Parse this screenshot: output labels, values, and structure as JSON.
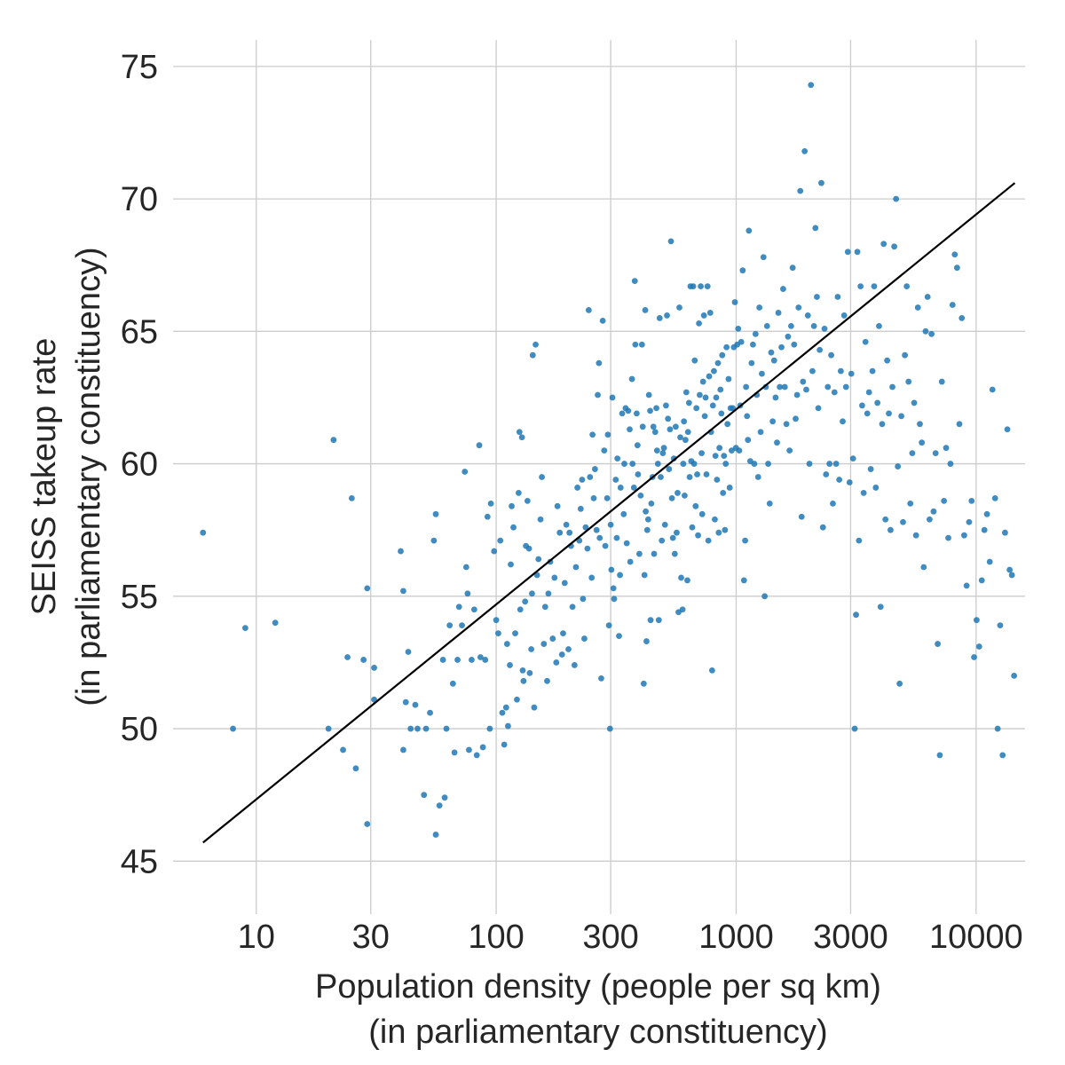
{
  "chart_data": {
    "type": "scatter",
    "xlabel_lines": [
      "Population density (people per sq km)",
      "(in parliamentary constituency)"
    ],
    "ylabel_lines": [
      "SEISS takeup rate",
      "(in parliamentary constituency)"
    ],
    "x_scale": "log",
    "xlim": [
      4.5,
      16000
    ],
    "ylim": [
      43,
      76
    ],
    "x_ticks": [
      10,
      30,
      100,
      300,
      1000,
      3000,
      10000
    ],
    "x_tick_labels": [
      "10",
      "30",
      "100",
      "300",
      "1000",
      "3000",
      "10000"
    ],
    "y_ticks": [
      45,
      50,
      55,
      60,
      65,
      70,
      75
    ],
    "y_tick_labels": [
      "45",
      "50",
      "55",
      "60",
      "65",
      "70",
      "75"
    ],
    "grid": true,
    "point_color": "#1f77b4",
    "trend_color": "#000000",
    "trend_line": [
      [
        6,
        45.7
      ],
      [
        14500,
        70.6
      ]
    ],
    "points": [
      [
        6,
        57.4
      ],
      [
        8,
        50
      ],
      [
        9,
        53.8
      ],
      [
        12,
        54
      ],
      [
        20,
        50
      ],
      [
        21,
        60.9
      ],
      [
        23,
        49.2
      ],
      [
        24,
        52.7
      ],
      [
        25,
        58.7
      ],
      [
        26,
        48.5
      ],
      [
        29,
        55.3
      ],
      [
        29,
        46.4
      ],
      [
        28,
        52.6
      ],
      [
        31,
        52.3
      ],
      [
        31,
        51.1
      ],
      [
        40,
        56.7
      ],
      [
        41,
        55.2
      ],
      [
        41,
        49.2
      ],
      [
        42,
        51
      ],
      [
        43,
        52.9
      ],
      [
        44,
        50
      ],
      [
        46,
        50.9
      ],
      [
        47,
        50
      ],
      [
        50,
        47.5
      ],
      [
        51,
        50
      ],
      [
        53,
        50.6
      ],
      [
        55,
        57.1
      ],
      [
        56,
        58.1
      ],
      [
        56,
        46
      ],
      [
        58,
        47.1
      ],
      [
        60,
        52.6
      ],
      [
        61,
        47.4
      ],
      [
        62,
        50
      ],
      [
        64,
        53.9
      ],
      [
        66,
        51.7
      ],
      [
        67,
        49.1
      ],
      [
        69,
        52.6
      ],
      [
        70,
        54.6
      ],
      [
        72,
        53.9
      ],
      [
        74,
        59.7
      ],
      [
        75,
        56.1
      ],
      [
        76,
        55.1
      ],
      [
        77,
        49.2
      ],
      [
        79,
        52.6
      ],
      [
        81,
        54.5
      ],
      [
        83,
        49
      ],
      [
        85,
        60.7
      ],
      [
        86,
        52.7
      ],
      [
        88,
        49.3
      ],
      [
        90,
        52.6
      ],
      [
        92,
        58
      ],
      [
        94,
        50
      ],
      [
        95,
        58.5
      ],
      [
        98,
        56.7
      ],
      [
        100,
        54.1
      ],
      [
        102,
        53.6
      ],
      [
        104,
        57.1
      ],
      [
        106,
        50.6
      ],
      [
        108,
        49.4
      ],
      [
        110,
        50.8
      ],
      [
        111,
        53.2
      ],
      [
        112,
        50.1
      ],
      [
        114,
        52.4
      ],
      [
        115,
        56.2
      ],
      [
        116,
        58.4
      ],
      [
        118,
        57.6
      ],
      [
        120,
        53.6
      ],
      [
        122,
        51.1
      ],
      [
        124,
        58.9
      ],
      [
        125,
        61.2
      ],
      [
        126,
        54.5
      ],
      [
        128,
        61
      ],
      [
        129,
        52.2
      ],
      [
        130,
        51.8
      ],
      [
        132,
        54.8
      ],
      [
        133,
        56.9
      ],
      [
        135,
        58.6
      ],
      [
        137,
        56.8
      ],
      [
        138,
        52.1
      ],
      [
        140,
        53
      ],
      [
        141,
        55.1
      ],
      [
        142,
        64.1
      ],
      [
        144,
        50.8
      ],
      [
        146,
        64.5
      ],
      [
        148,
        55.8
      ],
      [
        150,
        56.4
      ],
      [
        153,
        57.9
      ],
      [
        155,
        59.5
      ],
      [
        158,
        53.2
      ],
      [
        160,
        54.6
      ],
      [
        163,
        51.8
      ],
      [
        165,
        55.1
      ],
      [
        168,
        56.3
      ],
      [
        172,
        53.4
      ],
      [
        175,
        55.7
      ],
      [
        178,
        52.5
      ],
      [
        180,
        58.4
      ],
      [
        184,
        57.4
      ],
      [
        188,
        52.8
      ],
      [
        190,
        53.6
      ],
      [
        193,
        55.5
      ],
      [
        196,
        57.7
      ],
      [
        200,
        53
      ],
      [
        202,
        57.4
      ],
      [
        205,
        56.9
      ],
      [
        208,
        54.6
      ],
      [
        212,
        52.4
      ],
      [
        215,
        56.1
      ],
      [
        218,
        59.1
      ],
      [
        222,
        57.1
      ],
      [
        225,
        58.3
      ],
      [
        228,
        59.4
      ],
      [
        230,
        54.9
      ],
      [
        233,
        53.4
      ],
      [
        236,
        57.6
      ],
      [
        240,
        56.8
      ],
      [
        243,
        65.8
      ],
      [
        246,
        59.5
      ],
      [
        250,
        55.7
      ],
      [
        252,
        61.1
      ],
      [
        255,
        58.7
      ],
      [
        258,
        59.8
      ],
      [
        262,
        57.5
      ],
      [
        265,
        62.6
      ],
      [
        268,
        63.8
      ],
      [
        270,
        57.2
      ],
      [
        274,
        51.9
      ],
      [
        278,
        65.4
      ],
      [
        282,
        60.5
      ],
      [
        285,
        56.9
      ],
      [
        290,
        58.7
      ],
      [
        292,
        61.1
      ],
      [
        295,
        53.9
      ],
      [
        298,
        50
      ],
      [
        300,
        57.7
      ],
      [
        302,
        56
      ],
      [
        305,
        62.5
      ],
      [
        308,
        55.3
      ],
      [
        310,
        54.9
      ],
      [
        315,
        59.4
      ],
      [
        318,
        57.2
      ],
      [
        320,
        60.2
      ],
      [
        325,
        53.5
      ],
      [
        328,
        55.8
      ],
      [
        330,
        59.1
      ],
      [
        335,
        61.9
      ],
      [
        340,
        58.1
      ],
      [
        342,
        60
      ],
      [
        346,
        62.1
      ],
      [
        350,
        57
      ],
      [
        355,
        62
      ],
      [
        360,
        61.3
      ],
      [
        362,
        56.3
      ],
      [
        368,
        63.2
      ],
      [
        370,
        60
      ],
      [
        375,
        59.1
      ],
      [
        378,
        66.9
      ],
      [
        380,
        64.5
      ],
      [
        385,
        61.9
      ],
      [
        388,
        60.7
      ],
      [
        390,
        59.6
      ],
      [
        395,
        56.6
      ],
      [
        400,
        58.8
      ],
      [
        405,
        64.5
      ],
      [
        408,
        61.4
      ],
      [
        412,
        51.7
      ],
      [
        415,
        55.8
      ],
      [
        418,
        65.8
      ],
      [
        420,
        58.2
      ],
      [
        423,
        53.3
      ],
      [
        426,
        57.5
      ],
      [
        430,
        57.9
      ],
      [
        433,
        62.6
      ],
      [
        438,
        62
      ],
      [
        440,
        54.1
      ],
      [
        443,
        58.5
      ],
      [
        448,
        59.5
      ],
      [
        452,
        61.4
      ],
      [
        455,
        56.6
      ],
      [
        460,
        61.2
      ],
      [
        465,
        62.1
      ],
      [
        468,
        60.5
      ],
      [
        472,
        60
      ],
      [
        476,
        54.1
      ],
      [
        480,
        65.5
      ],
      [
        485,
        59.5
      ],
      [
        490,
        57.1
      ],
      [
        495,
        60.4
      ],
      [
        500,
        60.6
      ],
      [
        505,
        57.7
      ],
      [
        510,
        62.2
      ],
      [
        515,
        65.6
      ],
      [
        520,
        61.7
      ],
      [
        525,
        59.8
      ],
      [
        530,
        61.3
      ],
      [
        535,
        68.4
      ],
      [
        540,
        58.7
      ],
      [
        545,
        57.2
      ],
      [
        550,
        60.2
      ],
      [
        555,
        56.6
      ],
      [
        560,
        61.4
      ],
      [
        565,
        57.4
      ],
      [
        570,
        58.9
      ],
      [
        575,
        54.4
      ],
      [
        580,
        65.9
      ],
      [
        585,
        61
      ],
      [
        590,
        55.7
      ],
      [
        598,
        54.5
      ],
      [
        602,
        60
      ],
      [
        606,
        61.6
      ],
      [
        610,
        58.8
      ],
      [
        615,
        60.9
      ],
      [
        620,
        62.7
      ],
      [
        626,
        55.6
      ],
      [
        630,
        61.2
      ],
      [
        636,
        62.3
      ],
      [
        640,
        59.5
      ],
      [
        645,
        66.7
      ],
      [
        650,
        60.1
      ],
      [
        656,
        57.6
      ],
      [
        662,
        66.7
      ],
      [
        668,
        60
      ],
      [
        672,
        63.9
      ],
      [
        678,
        58.4
      ],
      [
        683,
        62.1
      ],
      [
        688,
        59.6
      ],
      [
        694,
        57.3
      ],
      [
        700,
        65.3
      ],
      [
        705,
        62.6
      ],
      [
        712,
        66.7
      ],
      [
        718,
        60.4
      ],
      [
        722,
        58.1
      ],
      [
        728,
        63.1
      ],
      [
        734,
        65.6
      ],
      [
        740,
        61.8
      ],
      [
        746,
        62.5
      ],
      [
        752,
        59.6
      ],
      [
        760,
        66.7
      ],
      [
        766,
        57.1
      ],
      [
        772,
        63.3
      ],
      [
        780,
        65.7
      ],
      [
        786,
        61.2
      ],
      [
        794,
        52.2
      ],
      [
        800,
        62.2
      ],
      [
        808,
        63.5
      ],
      [
        815,
        57.9
      ],
      [
        820,
        60.3
      ],
      [
        826,
        62.5
      ],
      [
        832,
        59.4
      ],
      [
        840,
        63.8
      ],
      [
        846,
        57.4
      ],
      [
        852,
        60.6
      ],
      [
        860,
        62.8
      ],
      [
        868,
        61.9
      ],
      [
        875,
        64.1
      ],
      [
        882,
        58.9
      ],
      [
        890,
        60.3
      ],
      [
        898,
        57.5
      ],
      [
        905,
        60
      ],
      [
        912,
        64.4
      ],
      [
        920,
        61.5
      ],
      [
        930,
        63.2
      ],
      [
        940,
        59.1
      ],
      [
        948,
        62.1
      ],
      [
        958,
        60.5
      ],
      [
        968,
        62.1
      ],
      [
        978,
        64.4
      ],
      [
        988,
        66.1
      ],
      [
        998,
        60.6
      ],
      [
        1010,
        64.5
      ],
      [
        1020,
        65.1
      ],
      [
        1030,
        60.5
      ],
      [
        1040,
        62.2
      ],
      [
        1050,
        64.6
      ],
      [
        1065,
        67.3
      ],
      [
        1078,
        55.6
      ],
      [
        1090,
        57.1
      ],
      [
        1100,
        62.9
      ],
      [
        1110,
        61.8
      ],
      [
        1120,
        60.9
      ],
      [
        1130,
        68.8
      ],
      [
        1145,
        60.1
      ],
      [
        1160,
        63.8
      ],
      [
        1175,
        64.5
      ],
      [
        1190,
        60
      ],
      [
        1205,
        64.9
      ],
      [
        1220,
        62.6
      ],
      [
        1235,
        59.5
      ],
      [
        1250,
        65.9
      ],
      [
        1265,
        61.2
      ],
      [
        1280,
        63.4
      ],
      [
        1300,
        67.8
      ],
      [
        1315,
        55
      ],
      [
        1330,
        62.9
      ],
      [
        1345,
        65.2
      ],
      [
        1360,
        60
      ],
      [
        1380,
        58.5
      ],
      [
        1400,
        64.2
      ],
      [
        1420,
        61.6
      ],
      [
        1440,
        63.9
      ],
      [
        1460,
        62.5
      ],
      [
        1480,
        60.8
      ],
      [
        1500,
        65.7
      ],
      [
        1520,
        62.9
      ],
      [
        1545,
        64.4
      ],
      [
        1570,
        66.6
      ],
      [
        1595,
        62.9
      ],
      [
        1620,
        61.5
      ],
      [
        1645,
        64.8
      ],
      [
        1670,
        60.5
      ],
      [
        1695,
        65.2
      ],
      [
        1720,
        67.4
      ],
      [
        1745,
        64.5
      ],
      [
        1770,
        61.7
      ],
      [
        1795,
        62.6
      ],
      [
        1820,
        65.9
      ],
      [
        1850,
        70.3
      ],
      [
        1875,
        58
      ],
      [
        1900,
        63.1
      ],
      [
        1930,
        71.8
      ],
      [
        1960,
        62.8
      ],
      [
        1990,
        65.6
      ],
      [
        2020,
        60
      ],
      [
        2050,
        74.3
      ],
      [
        2080,
        63.5
      ],
      [
        2110,
        65.2
      ],
      [
        2140,
        68.9
      ],
      [
        2170,
        66.3
      ],
      [
        2200,
        62.1
      ],
      [
        2230,
        64.3
      ],
      [
        2265,
        70.6
      ],
      [
        2300,
        57.6
      ],
      [
        2335,
        65.1
      ],
      [
        2370,
        59.6
      ],
      [
        2410,
        62.9
      ],
      [
        2450,
        60
      ],
      [
        2490,
        64.1
      ],
      [
        2530,
        58.5
      ],
      [
        2570,
        62.7
      ],
      [
        2610,
        60
      ],
      [
        2650,
        66.3
      ],
      [
        2690,
        59.4
      ],
      [
        2730,
        63.5
      ],
      [
        2780,
        61.6
      ],
      [
        2820,
        65.6
      ],
      [
        2870,
        62.9
      ],
      [
        2920,
        68
      ],
      [
        2970,
        59.3
      ],
      [
        3020,
        63.4
      ],
      [
        3070,
        60.2
      ],
      [
        3120,
        50
      ],
      [
        3160,
        54.3
      ],
      [
        3200,
        68
      ],
      [
        3250,
        57.1
      ],
      [
        3300,
        66.7
      ],
      [
        3350,
        62.2
      ],
      [
        3400,
        58.9
      ],
      [
        3460,
        64.6
      ],
      [
        3520,
        61.9
      ],
      [
        3580,
        62.7
      ],
      [
        3640,
        59.8
      ],
      [
        3700,
        63.5
      ],
      [
        3760,
        66.7
      ],
      [
        3820,
        59.1
      ],
      [
        3880,
        62.3
      ],
      [
        3940,
        65.2
      ],
      [
        4000,
        54.6
      ],
      [
        4060,
        61.5
      ],
      [
        4120,
        68.3
      ],
      [
        4190,
        57.9
      ],
      [
        4260,
        63.9
      ],
      [
        4330,
        61.9
      ],
      [
        4400,
        57.5
      ],
      [
        4480,
        62.9
      ],
      [
        4560,
        68.2
      ],
      [
        4640,
        70
      ],
      [
        4720,
        59.9
      ],
      [
        4800,
        51.7
      ],
      [
        4880,
        61.8
      ],
      [
        4960,
        57.8
      ],
      [
        5050,
        64.1
      ],
      [
        5140,
        66.7
      ],
      [
        5230,
        63.1
      ],
      [
        5320,
        58.5
      ],
      [
        5420,
        60.4
      ],
      [
        5520,
        62.3
      ],
      [
        5620,
        57.3
      ],
      [
        5720,
        65.9
      ],
      [
        5830,
        61.5
      ],
      [
        5940,
        60.8
      ],
      [
        6050,
        56.1
      ],
      [
        6160,
        65
      ],
      [
        6280,
        66.3
      ],
      [
        6400,
        57.9
      ],
      [
        6520,
        64.9
      ],
      [
        6650,
        58.2
      ],
      [
        6780,
        60.4
      ],
      [
        6920,
        53.2
      ],
      [
        7060,
        49
      ],
      [
        7200,
        63.1
      ],
      [
        7350,
        58.6
      ],
      [
        7500,
        60.6
      ],
      [
        7660,
        57.2
      ],
      [
        7820,
        60
      ],
      [
        7980,
        66
      ],
      [
        8150,
        67.9
      ],
      [
        8330,
        67.4
      ],
      [
        8520,
        61.5
      ],
      [
        8720,
        65.5
      ],
      [
        8920,
        57.3
      ],
      [
        9130,
        55.4
      ],
      [
        9350,
        57.8
      ],
      [
        9580,
        58.6
      ],
      [
        9810,
        52.7
      ],
      [
        10050,
        54.1
      ],
      [
        10300,
        53.1
      ],
      [
        10560,
        55.6
      ],
      [
        10830,
        57.5
      ],
      [
        11100,
        58.1
      ],
      [
        11400,
        56.3
      ],
      [
        11700,
        62.8
      ],
      [
        12000,
        58.7
      ],
      [
        12300,
        50
      ],
      [
        12600,
        53.9
      ],
      [
        12900,
        49
      ],
      [
        13200,
        57.4
      ],
      [
        13500,
        61.3
      ],
      [
        13800,
        56
      ],
      [
        14100,
        55.8
      ],
      [
        14400,
        52
      ]
    ]
  }
}
